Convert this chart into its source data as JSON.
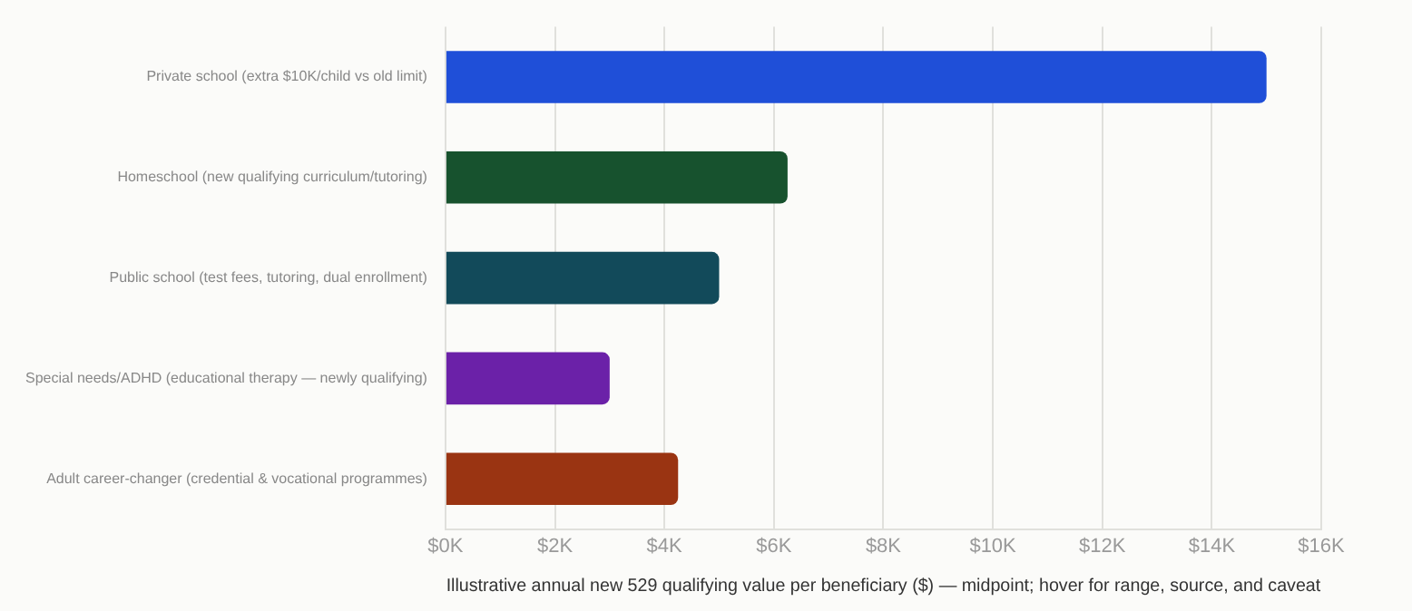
{
  "chart_data": {
    "type": "bar",
    "orientation": "horizontal",
    "xlabel": "Illustrative annual new 529 qualifying value per beneficiary ($) — midpoint; hover for range, source, and caveat",
    "categories": [
      "Private school (extra $10K/child vs old limit)",
      "Homeschool (new qualifying curriculum/tutoring)",
      "Public school (test fees, tutoring, dual enrollment)",
      "Special needs/ADHD (educational therapy — newly qualifying)",
      "Adult career-changer (credential & vocational programmes)"
    ],
    "values": [
      15,
      6.25,
      5,
      3,
      4.25
    ],
    "colors": [
      "#1f4fd8",
      "#17522e",
      "#124a5a",
      "#6b21a8",
      "#9a3412"
    ],
    "xlim": [
      0,
      16
    ],
    "xticks": [
      {
        "value": 0,
        "label": "$0K"
      },
      {
        "value": 2,
        "label": "$2K"
      },
      {
        "value": 4,
        "label": "$4K"
      },
      {
        "value": 6,
        "label": "$6K"
      },
      {
        "value": 8,
        "label": "$8K"
      },
      {
        "value": 10,
        "label": "$10K"
      },
      {
        "value": 12,
        "label": "$12K"
      },
      {
        "value": 14,
        "label": "$14K"
      },
      {
        "value": 16,
        "label": "$16K"
      }
    ],
    "grid": "x",
    "legend": false
  }
}
